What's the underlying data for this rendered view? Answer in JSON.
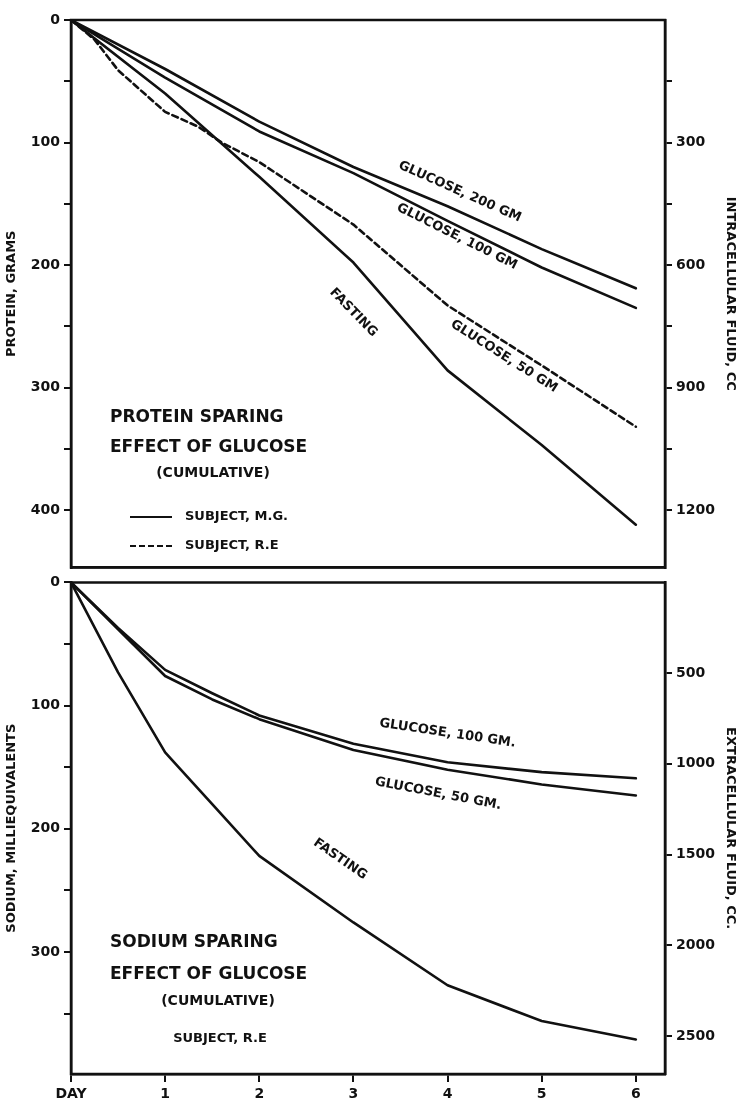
{
  "chart_data": [
    {
      "type": "line",
      "title": "PROTEIN SPARING\nEFFECT OF GLUCOSE",
      "subtitle": "(CUMULATIVE)",
      "ylabel": "PROTEIN, GRAMS",
      "y2label": "INTRACELLULAR FLUID, CC",
      "annotations": [
        "SUBJECT, M.G.",
        "SUBJECT, R.E"
      ],
      "x": [
        0,
        1,
        2,
        3,
        4,
        5,
        6
      ],
      "xlim": [
        0,
        6.31
      ],
      "ylim": [
        447,
        0
      ],
      "yticks": [
        0,
        {
          "value": 50,
          "label": null
        },
        100,
        {
          "value": 150,
          "label": null
        },
        200,
        {
          "value": 250,
          "label": null
        },
        300,
        {
          "value": 350,
          "label": null
        },
        400
      ],
      "y2lim": [
        1340,
        0
      ],
      "y2ticks": [
        {
          "value": 150,
          "label": null
        },
        300,
        {
          "value": 450,
          "label": null
        },
        600,
        {
          "value": 750,
          "label": null
        },
        900,
        {
          "value": 1050,
          "label": null
        },
        1200
      ],
      "tick_labels": "y",
      "grid": false,
      "legend": false,
      "marker": "none",
      "series": [
        {
          "name": "GLUCOSE, 200 GM",
          "color": "#111111",
          "line_style": "solid",
          "values": [
            0,
            40,
            83,
            120,
            152,
            187,
            219
          ]
        },
        {
          "name": "GLUCOSE, 100 GM",
          "color": "#111111",
          "line_style": "solid",
          "values": [
            0,
            47,
            91,
            125,
            164,
            202,
            235
          ]
        },
        {
          "name": "FASTING",
          "color": "#111111",
          "line_style": "solid",
          "values": [
            0,
            60,
            128,
            198,
            286,
            347,
            412
          ]
        },
        {
          "name": "GLUCOSE, 50 GM",
          "color": "#111111",
          "line_style": "dashed",
          "x": [
            0,
            0.25,
            0.5,
            1,
            1.35,
            1.6,
            2,
            3,
            4,
            5,
            6
          ],
          "values": [
            0,
            16,
            41,
            75,
            87,
            100,
            116,
            167,
            233,
            282,
            332
          ]
        }
      ]
    },
    {
      "type": "line",
      "title": "SODIUM SPARING\nEFFECT OF GLUCOSE",
      "subtitle": "(CUMULATIVE)",
      "ylabel": "SODIUM, MILLIEQUIVALENTS",
      "y2label": "EXTRACELLULAR FLUID, CC.",
      "annotations": [
        "SUBJECT, R.E"
      ],
      "x": [
        0,
        0.5,
        1,
        1.5,
        2,
        3,
        4,
        5,
        6
      ],
      "xlim": [
        0,
        6.31
      ],
      "xticks": [
        {
          "value": 0,
          "label": "DAY"
        },
        1,
        2,
        3,
        4,
        5,
        6
      ],
      "ylim": [
        399,
        0
      ],
      "yticks": [
        0,
        {
          "value": 50,
          "label": null
        },
        100,
        {
          "value": 150,
          "label": null
        },
        200,
        {
          "value": 250,
          "label": null
        },
        300,
        {
          "value": 350,
          "label": null
        }
      ],
      "y2lim": [
        2710,
        0
      ],
      "y2ticks": [
        500,
        1000,
        1500,
        2000,
        2500
      ],
      "grid": false,
      "legend": false,
      "marker": "none",
      "series": [
        {
          "name": "GLUCOSE, 100 GM.",
          "color": "#111111",
          "line_style": "solid",
          "values": [
            0,
            37,
            71,
            90,
            108,
            131,
            146,
            154,
            159
          ]
        },
        {
          "name": "GLUCOSE, 50 GM.",
          "color": "#111111",
          "line_style": "solid",
          "values": [
            0,
            38,
            76,
            95,
            111,
            136,
            152,
            164,
            173
          ]
        },
        {
          "name": "FASTING",
          "color": "#111111",
          "line_style": "solid",
          "values": [
            0,
            73,
            138,
            180,
            222,
            276,
            327,
            356,
            371
          ]
        }
      ]
    }
  ]
}
